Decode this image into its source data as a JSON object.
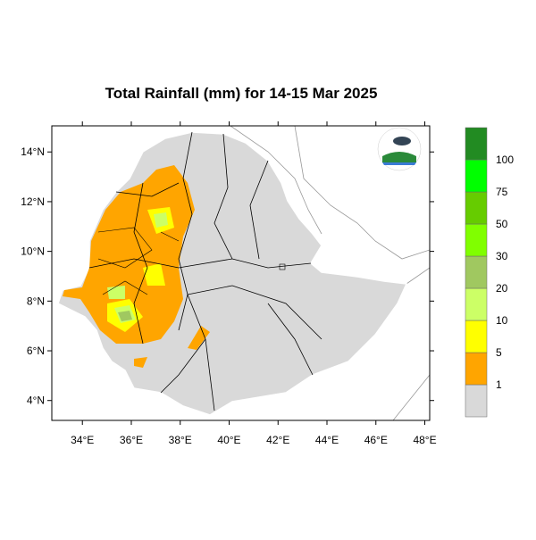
{
  "title": "Total Rainfall (mm) for 14-15 Mar 2025",
  "xlim": [
    32.75,
    48.2
  ],
  "ylim": [
    3.2,
    15.05
  ],
  "lon_ticks": [
    {
      "value": 34,
      "label": "34°E"
    },
    {
      "value": 36,
      "label": "36°E"
    },
    {
      "value": 38,
      "label": "38°E"
    },
    {
      "value": 40,
      "label": "40°E"
    },
    {
      "value": 42,
      "label": "42°E"
    },
    {
      "value": 44,
      "label": "44°E"
    },
    {
      "value": 46,
      "label": "46°E"
    },
    {
      "value": 48,
      "label": "48°E"
    }
  ],
  "lat_ticks": [
    {
      "value": 4,
      "label": "4°N"
    },
    {
      "value": 6,
      "label": "6°N"
    },
    {
      "value": 8,
      "label": "8°N"
    },
    {
      "value": 10,
      "label": "10°N"
    },
    {
      "value": 12,
      "label": "12°N"
    },
    {
      "value": 14,
      "label": "14°N"
    }
  ],
  "colorbar": {
    "levels": [
      1,
      5,
      10,
      20,
      30,
      50,
      75,
      100
    ],
    "colors": [
      "#d9d9d9",
      "#ffa500",
      "#ffff00",
      "#ccff66",
      "#a0c860",
      "#80ff00",
      "#66cc00",
      "#00ff00",
      "#228b22"
    ]
  }
}
